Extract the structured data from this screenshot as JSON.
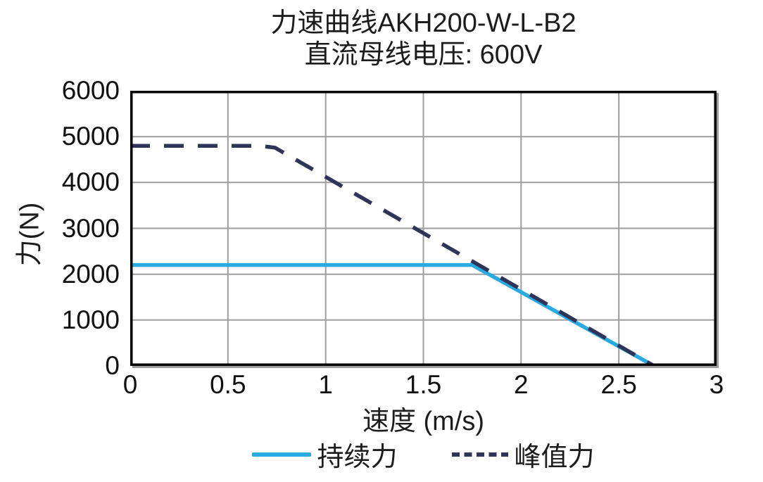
{
  "header": {
    "title": "力速曲线AKH200-W-L-B2",
    "subtitle": "直流母线电压: 600V"
  },
  "colors": {
    "background": "#FFFFFF",
    "frame": "#000000",
    "grid": "#9D9D9D",
    "tick_text": "#111111",
    "continuous": "#29ABE2",
    "peak": "#2F3459"
  },
  "chart_data": {
    "type": "line",
    "title": "力速曲线AKH200-W-L-B2",
    "subtitle": "直流母线电压: 600V",
    "xlabel": "速度 (m/s)",
    "ylabel": "力(N)",
    "xlim": [
      0,
      3
    ],
    "ylim": [
      0,
      6000
    ],
    "x_ticks": [
      0,
      0.5,
      1,
      1.5,
      2,
      2.5,
      3
    ],
    "y_ticks": [
      0,
      1000,
      2000,
      3000,
      4000,
      5000,
      6000
    ],
    "grid": true,
    "legend_position": "bottom",
    "series": [
      {
        "name": "持续力",
        "style": "solid",
        "color": "#29ABE2",
        "points": [
          [
            0,
            2200
          ],
          [
            1.75,
            2200
          ],
          [
            2.68,
            0
          ]
        ]
      },
      {
        "name": "峰值力",
        "style": "dashed",
        "color": "#2F3459",
        "points": [
          [
            0,
            4800
          ],
          [
            0.66,
            4800
          ],
          [
            0.74,
            4760
          ],
          [
            2.68,
            0
          ]
        ]
      }
    ]
  }
}
